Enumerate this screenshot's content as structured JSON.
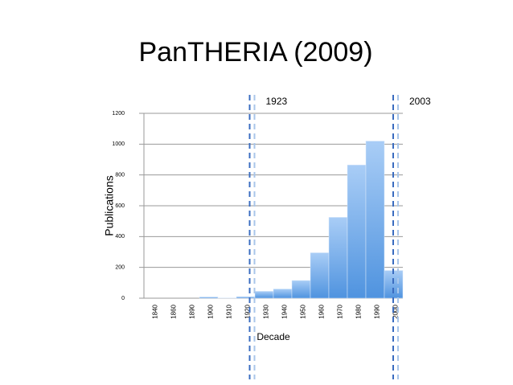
{
  "chart_data": {
    "type": "bar",
    "title": "PanTHERIA (2009)",
    "y_label": "Publications",
    "x_label": "Decade",
    "categories": [
      "1840",
      "1860",
      "1890",
      "1900",
      "1910",
      "1920",
      "1930",
      "1940",
      "1950",
      "1960",
      "1970",
      "1980",
      "1990",
      "2000"
    ],
    "values": [
      0,
      0,
      0,
      8,
      2,
      10,
      45,
      60,
      115,
      295,
      525,
      865,
      1020,
      180
    ],
    "color": "#6aa8ec",
    "ylim": [
      0,
      1200
    ],
    "yticks": [
      0,
      200,
      400,
      600,
      800,
      1000,
      1200
    ],
    "grid": true,
    "annotations": [
      "1923",
      "2003"
    ]
  }
}
